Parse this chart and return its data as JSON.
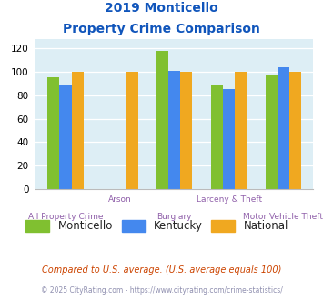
{
  "title_line1": "2019 Monticello",
  "title_line2": "Property Crime Comparison",
  "cat_labels_row1": [
    "",
    "Arson",
    "",
    "Larceny & Theft",
    ""
  ],
  "cat_labels_row2": [
    "All Property Crime",
    "",
    "Burglary",
    "",
    "Motor Vehicle Theft"
  ],
  "monticello": [
    95,
    0,
    118,
    88,
    98
  ],
  "kentucky": [
    89,
    0,
    101,
    85,
    104
  ],
  "national": [
    100,
    100,
    100,
    100,
    100
  ],
  "colors": {
    "monticello": "#80c030",
    "kentucky": "#4488ee",
    "national": "#f0a820"
  },
  "ylim": [
    0,
    128
  ],
  "yticks": [
    0,
    20,
    40,
    60,
    80,
    100,
    120
  ],
  "background_color": "#ddeef5",
  "title_color": "#1055bb",
  "xlabel_color": "#9060aa",
  "legend_label_color": "#222222",
  "footnote1": "Compared to U.S. average. (U.S. average equals 100)",
  "footnote2": "© 2025 CityRating.com - https://www.cityrating.com/crime-statistics/",
  "footnote1_color": "#cc4400",
  "footnote2_color": "#9090b0",
  "bar_width": 0.22
}
